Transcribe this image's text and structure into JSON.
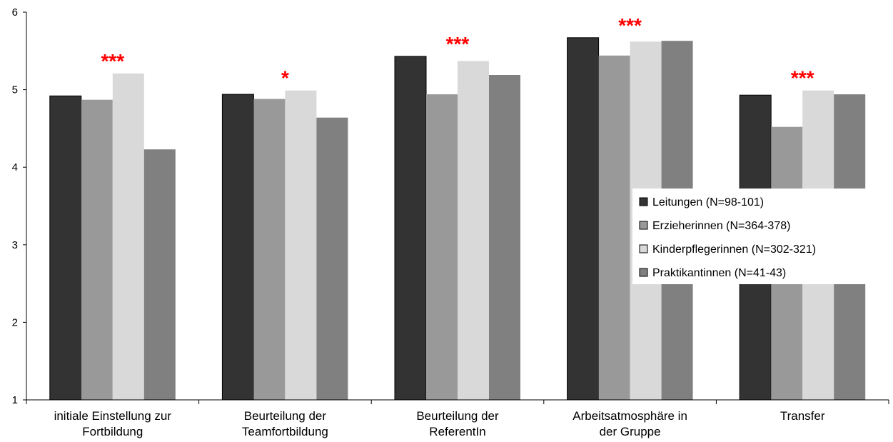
{
  "chart_data": {
    "type": "bar",
    "title": "",
    "xlabel": "",
    "ylabel": "",
    "ylim": [
      1,
      6
    ],
    "yticks": [
      "1",
      "2",
      "3",
      "4",
      "5",
      "6"
    ],
    "grid": false,
    "legend_position": "right, inside plot",
    "categories": [
      [
        "initiale Einstellung zur",
        "Fortbildung"
      ],
      [
        "Beurteilung der",
        "Teamfortbildung"
      ],
      [
        "Beurteilung der",
        "ReferentIn"
      ],
      [
        "Arbeitsatmosphäre in",
        "der Gruppe"
      ],
      [
        "Transfer"
      ]
    ],
    "significance": [
      "***",
      "*",
      "***",
      "***",
      "***"
    ],
    "series": [
      {
        "name": "Leitungen (N=98-101)",
        "color": "#333333",
        "values": [
          4.92,
          4.94,
          5.43,
          5.67,
          4.93
        ]
      },
      {
        "name": "Erzieherinnen (N=364-378)",
        "color": "#999999",
        "values": [
          4.87,
          4.88,
          4.94,
          5.44,
          4.52
        ]
      },
      {
        "name": "Kinderpflegerinnen (N=302-321)",
        "color": "#d9d9d9",
        "values": [
          5.21,
          4.99,
          5.37,
          5.62,
          4.99
        ]
      },
      {
        "name": "Praktikantinnen (N=41-43)",
        "color": "#808080",
        "values": [
          4.23,
          4.64,
          5.19,
          5.63,
          4.94
        ]
      }
    ]
  }
}
